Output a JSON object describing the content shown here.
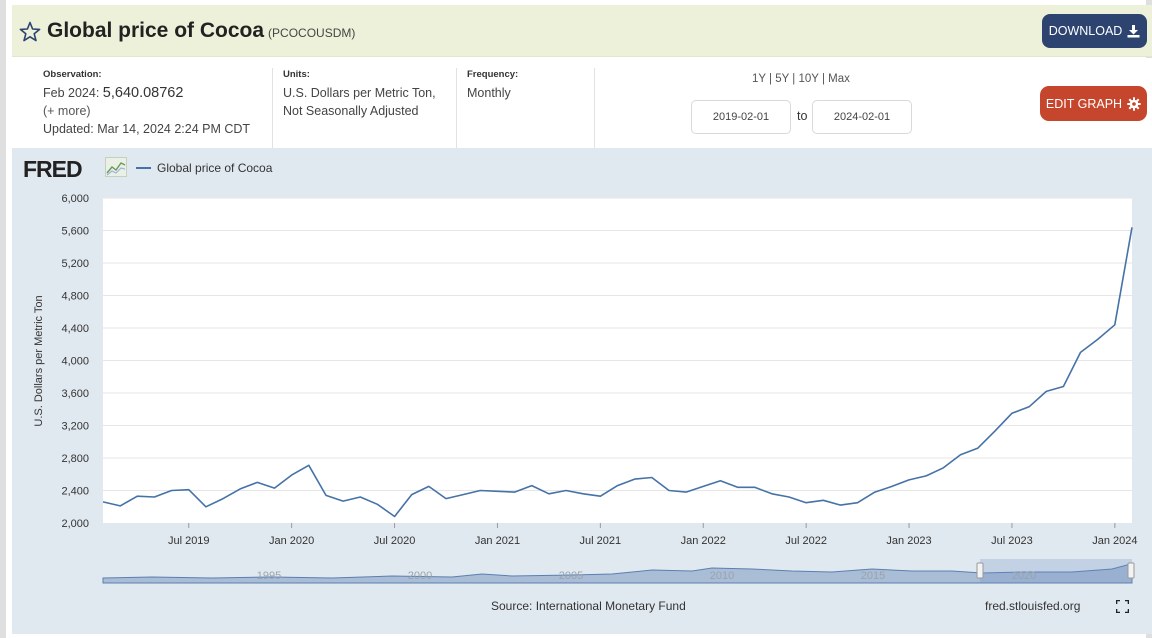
{
  "header": {
    "title": "Global price of Cocoa",
    "series_id": "(PCOCOUSDM)",
    "download_label": "DOWNLOAD"
  },
  "meta": {
    "observation_label": "Observation:",
    "observation_date": "Feb 2024:",
    "observation_value": "5,640.08762",
    "more_link": "(+ more)",
    "updated": "Updated: Mar 14, 2024 2:24 PM CDT",
    "units_label": "Units:",
    "units_line1": "U.S. Dollars per Metric Ton,",
    "units_line2": "Not Seasonally Adjusted",
    "frequency_label": "Frequency:",
    "frequency_value": "Monthly"
  },
  "range": {
    "options": [
      "1Y",
      "5Y",
      "10Y",
      "Max"
    ],
    "start_date": "2019-02-01",
    "to_label": "to",
    "end_date": "2024-02-01"
  },
  "edit_label": "EDIT GRAPH",
  "chart_area": {
    "logo_text": "FRED",
    "source": "Source: International Monetary Fund",
    "url": "fred.stlouisfed.org"
  },
  "colors": {
    "series": "#4572a7",
    "header_bg": "#eef1d9",
    "download_bg": "#2e4470",
    "edit_bg": "#c6462d",
    "panel_bg": "#e1e9f0"
  },
  "chart_data": {
    "type": "line",
    "title": "Global price of Cocoa",
    "xlabel": "",
    "ylabel": "U.S. Dollars per Metric Ton",
    "ylim": [
      2000,
      6000
    ],
    "yticks": [
      "2,000",
      "2,400",
      "2,800",
      "3,200",
      "3,600",
      "4,000",
      "4,400",
      "4,800",
      "5,200",
      "5,600",
      "6,000"
    ],
    "xticks": [
      {
        "label": "Jul 2019",
        "index": 5
      },
      {
        "label": "Jan 2020",
        "index": 11
      },
      {
        "label": "Jul 2020",
        "index": 17
      },
      {
        "label": "Jan 2021",
        "index": 23
      },
      {
        "label": "Jul 2021",
        "index": 29
      },
      {
        "label": "Jan 2022",
        "index": 35
      },
      {
        "label": "Jul 2022",
        "index": 41
      },
      {
        "label": "Jan 2023",
        "index": 47
      },
      {
        "label": "Jul 2023",
        "index": 53
      },
      {
        "label": "Jan 2024",
        "index": 59
      }
    ],
    "series": [
      {
        "name": "Global price of Cocoa",
        "start": "2019-02",
        "values": [
          2260,
          2210,
          2330,
          2320,
          2400,
          2410,
          2200,
          2300,
          2420,
          2500,
          2430,
          2590,
          2710,
          2340,
          2270,
          2320,
          2230,
          2080,
          2350,
          2450,
          2300,
          2350,
          2400,
          2390,
          2380,
          2460,
          2360,
          2400,
          2360,
          2330,
          2460,
          2540,
          2560,
          2400,
          2380,
          2450,
          2520,
          2440,
          2440,
          2360,
          2320,
          2250,
          2280,
          2220,
          2250,
          2380,
          2450,
          2530,
          2580,
          2680,
          2840,
          2920,
          3130,
          3350,
          3430,
          3620,
          3680,
          4100,
          4260,
          4440,
          5640
        ]
      }
    ],
    "navigator_labels": [
      "1995",
      "2000",
      "2005",
      "2010",
      "2015",
      "2020"
    ]
  }
}
